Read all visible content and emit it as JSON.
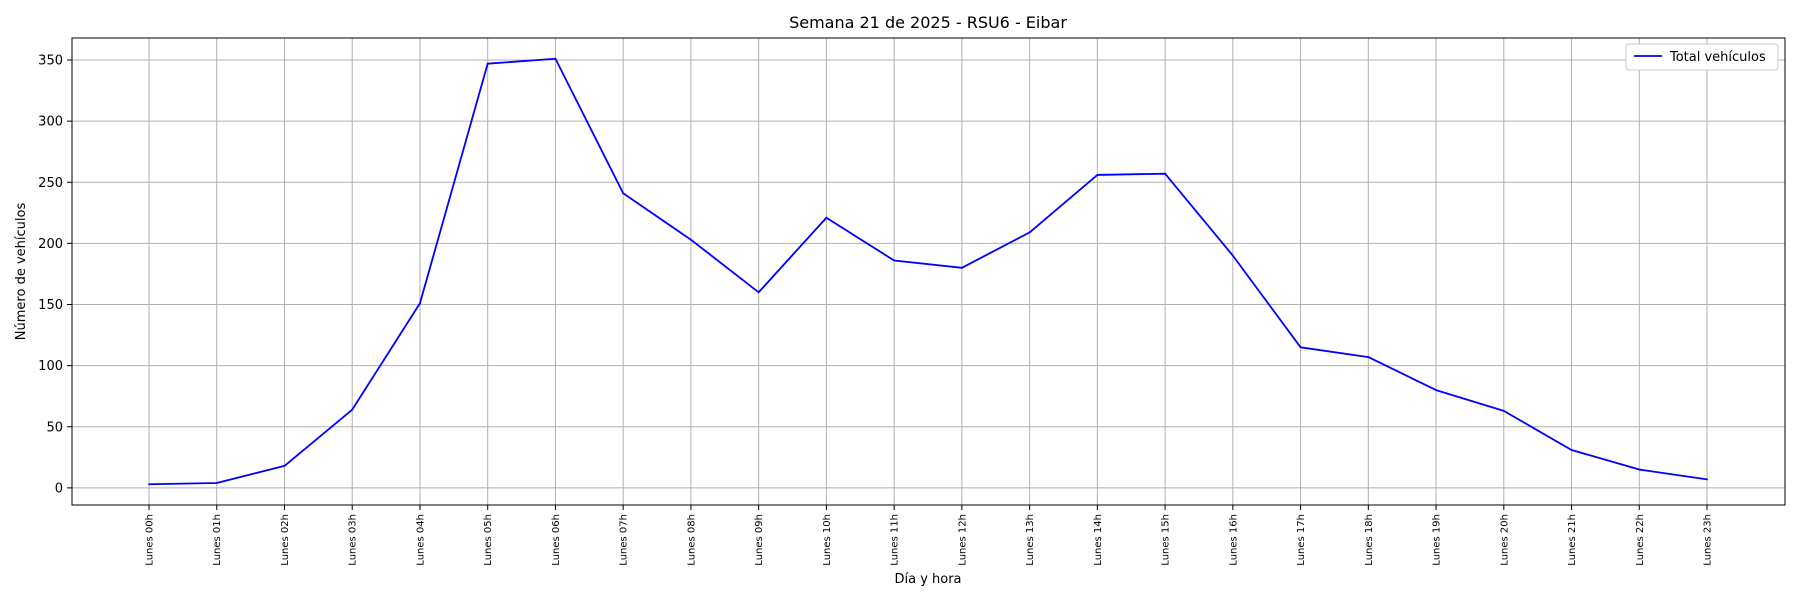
{
  "chart_data": {
    "type": "line",
    "title": "Semana 21 de 2025 - RSU6 - Eibar",
    "xlabel": "Día y hora",
    "ylabel": "Número de vehículos",
    "categories": [
      "Lunes 00h",
      "Lunes 01h",
      "Lunes 02h",
      "Lunes 03h",
      "Lunes 04h",
      "Lunes 05h",
      "Lunes 06h",
      "Lunes 07h",
      "Lunes 08h",
      "Lunes 09h",
      "Lunes 10h",
      "Lunes 11h",
      "Lunes 12h",
      "Lunes 13h",
      "Lunes 14h",
      "Lunes 15h",
      "Lunes 16h",
      "Lunes 17h",
      "Lunes 18h",
      "Lunes 19h",
      "Lunes 20h",
      "Lunes 21h",
      "Lunes 22h",
      "Lunes 23h"
    ],
    "series": [
      {
        "name": "Total vehículos",
        "color": "#0000ff",
        "values": [
          3,
          4,
          18,
          64,
          151,
          347,
          351,
          241,
          203,
          160,
          221,
          186,
          180,
          209,
          256,
          257,
          190,
          115,
          107,
          80,
          63,
          31,
          15,
          7
        ]
      }
    ],
    "ylim": [
      -14,
      368
    ],
    "yticks": [
      0,
      50,
      100,
      150,
      200,
      250,
      300,
      350
    ],
    "grid": true,
    "legend_position": "top-right"
  }
}
